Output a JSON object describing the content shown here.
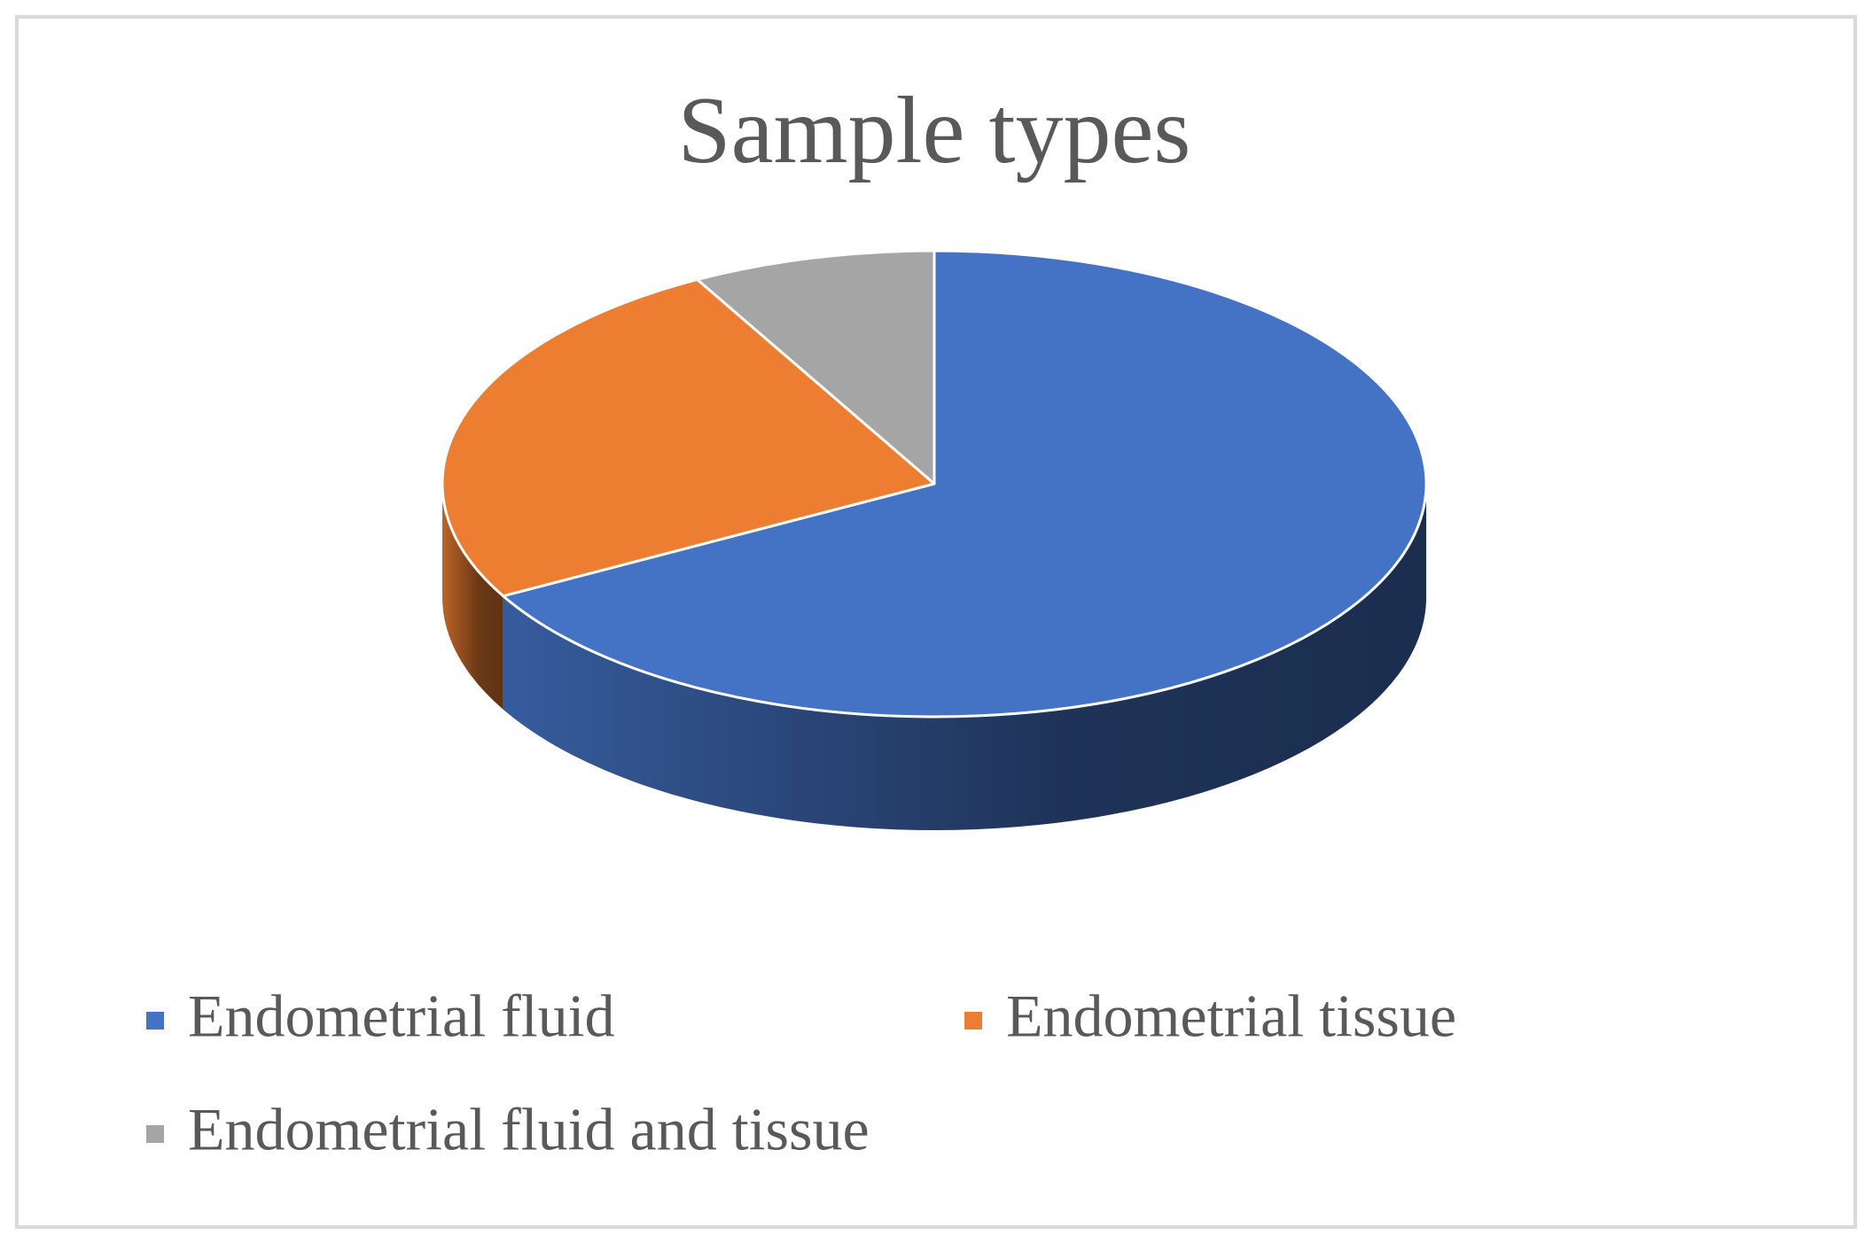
{
  "chart_data": {
    "type": "pie",
    "title": "Sample types",
    "categories": [
      "Endometrial fluid",
      "Endometrial tissue",
      "Endometrial fluid and tissue"
    ],
    "values": [
      67,
      25,
      8
    ],
    "colors": [
      "#4472c4",
      "#ed7d31",
      "#a5a5a5"
    ],
    "legend": "bottom"
  }
}
